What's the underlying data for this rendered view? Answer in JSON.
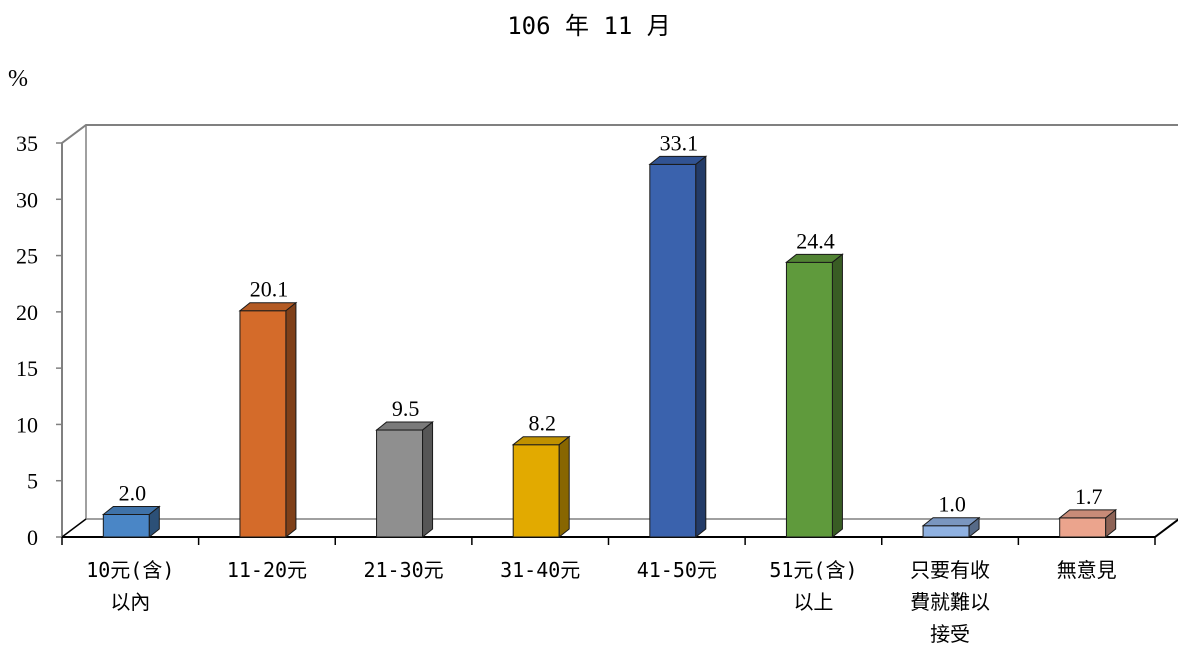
{
  "chart_data": {
    "type": "bar",
    "title": "106 年 11 月",
    "ylabel": "%",
    "ylim": [
      0,
      35
    ],
    "yticks": [
      0,
      5,
      10,
      15,
      20,
      25,
      30,
      35
    ],
    "grid": false,
    "legend": "none",
    "categories": [
      "10元(含)\n以內",
      "11-20元",
      "21-30元",
      "31-40元",
      "41-50元",
      "51元(含)\n以上",
      "只要有收\n費就難以\n接受",
      "無意見"
    ],
    "values": [
      2.0,
      20.1,
      9.5,
      8.2,
      33.1,
      24.4,
      1.0,
      1.7
    ],
    "value_labels": [
      "2.0",
      "20.1",
      "9.5",
      "8.2",
      "33.1",
      "24.4",
      "1.0",
      "1.7"
    ],
    "colors": [
      "#4a86c6",
      "#d46b2a",
      "#8f8f8f",
      "#e2aa00",
      "#3a62ad",
      "#5f9a3c",
      "#8fb1e1",
      "#eba48d"
    ]
  }
}
